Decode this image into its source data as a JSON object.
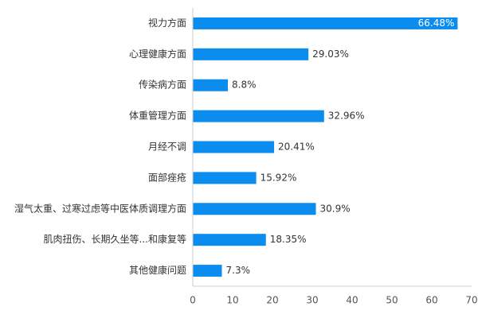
{
  "chart_data": {
    "type": "bar",
    "orientation": "horizontal",
    "categories": [
      "视力方面",
      "心理健康方面",
      "传染病方面",
      "体重管理方面",
      "月经不调",
      "面部痤疮",
      "湿气太重、过寒过虑等中医体质调理方面",
      "肌肉扭伤、长期久坐等...和康复等",
      "其他健康问题"
    ],
    "values": [
      66.48,
      29.03,
      8.8,
      32.96,
      20.41,
      15.92,
      30.9,
      18.35,
      7.3
    ],
    "value_labels": [
      "66.48%",
      "29.03%",
      "8.8%",
      "32.96%",
      "20.41%",
      "15.92%",
      "30.9%",
      "18.35%",
      "7.3%"
    ],
    "xlim": [
      0,
      70
    ],
    "x_ticks": [
      "0",
      "10",
      "20",
      "30",
      "40",
      "50",
      "60",
      "70"
    ],
    "bar_color": "#0b8df0",
    "grid": false,
    "legend": "none",
    "title": "",
    "xlabel": "",
    "ylabel": ""
  }
}
